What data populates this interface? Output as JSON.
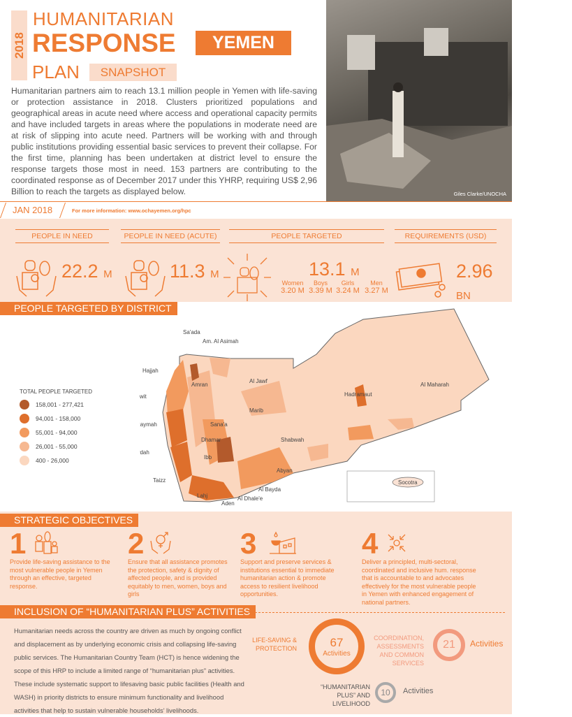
{
  "header": {
    "year": "2018",
    "title_line1": "HUMANITARIAN",
    "title_line2": "RESPONSE",
    "title_line3": "PLAN",
    "snapshot": "SNAPSHOT",
    "country": "YEMEN",
    "intro": "Humanitarian partners aim to reach 13.1 million people in Yemen with life-saving or protection assistance in 2018. Clusters prioritized populations and geographical areas in acute need where access and operational capacity permits and have included targets in areas where the populations in moderate need are at risk of slipping into acute need. Partners will be working with and through public institutions providing essential basic services to prevent their collapse. For the first time, planning has been undertaken at district level to ensure the response targets those most in need.  153 partners are contributing to the coordinated response as of December 2017 under this YHRP, requiring US$ 2,96 Billion to reach the targets as displayed below.",
    "photo_credit": "Giles Clarke/UNOCHA",
    "date": "JAN 2018",
    "more_info": "For more information: www.ochayemen.org/hpc"
  },
  "stats": {
    "pin": {
      "label": "PEOPLE IN NEED",
      "value": "22.2",
      "unit": "M"
    },
    "acute": {
      "label": "PEOPLE IN NEED (ACUTE)",
      "value": "11.3",
      "unit": "M"
    },
    "targeted": {
      "label": "PEOPLE TARGETED",
      "value": "13.1",
      "unit": "M",
      "breakdown": [
        {
          "label": "Women",
          "value": "3.20 M"
        },
        {
          "label": "Boys",
          "value": "3.39 M"
        },
        {
          "label": "Girls",
          "value": "3.24 M"
        },
        {
          "label": "Men",
          "value": "3.27 M"
        }
      ]
    },
    "req": {
      "label": "REQUIREMENTS (USD)",
      "value": "2.96",
      "unit": "BN"
    }
  },
  "map": {
    "title": "PEOPLE TARGETED BY DISTRICT",
    "legend_title": "TOTAL PEOPLE TARGETED",
    "legend": [
      {
        "label": "158,001 - 277,421",
        "color": "#b35a2c"
      },
      {
        "label": "94,001 - 158,000",
        "color": "#de6f2c"
      },
      {
        "label": "55,001 - 94,000",
        "color": "#f29a5e"
      },
      {
        "label": "26,001 - 55,000",
        "color": "#f6b891"
      },
      {
        "label": "400 - 26,000",
        "color": "#fbd7bf"
      }
    ],
    "labels": [
      "Sa'ada",
      "Am. Al Asimah",
      "Hajjah",
      "Amran",
      "Al Jawf",
      "Al Mahwit",
      "Marib",
      "Hadramaut",
      "Al Maharah",
      "Sana'a",
      "Raymah",
      "Dhamar",
      "Shabwah",
      "Al Hudaydah",
      "Ibb",
      "Abyan",
      "Taizz",
      "Al Bayda",
      "Lahj",
      "Al Dhale'e",
      "Aden",
      "Socotra"
    ]
  },
  "objectives": {
    "title": "STRATEGIC OBJECTIVES",
    "items": [
      {
        "num": "1",
        "text": "Provide life-saving assistance to the most vulnerable people in Yemen through an effective, targeted response."
      },
      {
        "num": "2",
        "text": "Ensure that all assistance promotes the protection, safety & dignity of affected people, and is provided equitably to men, women, boys and girls"
      },
      {
        "num": "3",
        "text": "Support and preserve services & institutions essential to immediate humanitarian action & promote access to resilient livelihood opportunities."
      },
      {
        "num": "4",
        "text": "Deliver a principled, multi-sectoral, coordinated and inclusive hum. response that is accountable to and advocates effectively for the most vulnerable people in Yemen with enhanced engagement of national partners."
      }
    ]
  },
  "plus": {
    "title": "INCLUSION OF “HUMANITARIAN PLUS” ACTIVITIES",
    "text": "Humanitarian needs across the country are driven as much by ongoing conflict and displacement as by underlying economic crisis and collapsing life-saving public services. The Humanitarian Country Team (HCT) is hence widening the scope of this HRP to include a limited range of “humanitarian plus” activities. These include systematic support to lifesaving basic public facilities (Health and WASH) in priority districts to ensure minimum functionality and livelihood activities that help to sustain vulnerable households’ livelihoods.",
    "groups": [
      {
        "label": "LIFE-SAVING & PROTECTION",
        "count": "67",
        "unit": "Activities",
        "color": "#ee7b32"
      },
      {
        "label": "COORDINATION, ASSESSMENTS AND COMMON SERVICES",
        "count": "21",
        "unit": "Activities",
        "color": "#f29a7e"
      },
      {
        "label": "“HUMANITARIAN PLUS” AND LIVELIHOOD",
        "count": "10",
        "unit": "Activities",
        "color": "#a9a9a9"
      }
    ]
  },
  "colors": {
    "accent": "#ee7b32",
    "light": "#fbe3d5"
  }
}
